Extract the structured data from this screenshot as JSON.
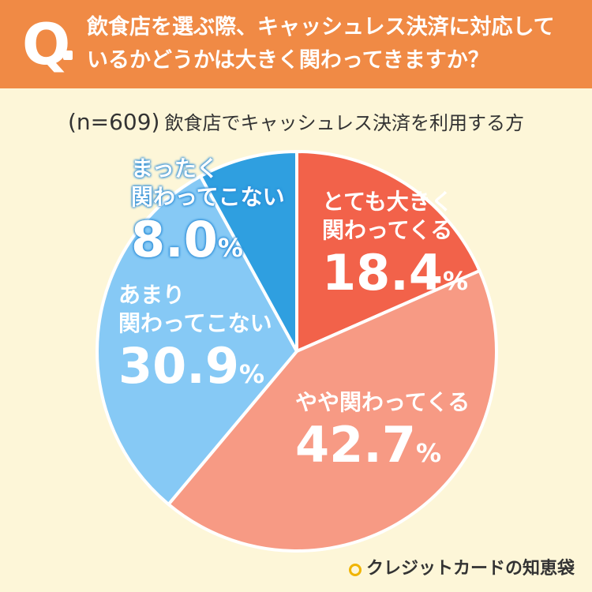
{
  "header": {
    "q_mark": "Q",
    "question_line1": "飲食店を選ぶ際、キャッシュレス決済に対応して",
    "question_line2": "いるかどうかは大きく関わってきますか？"
  },
  "subtitle": {
    "n": "(n=609)",
    "text": "飲食店でキャッシュレス決済を利用する方"
  },
  "chart_data": {
    "type": "pie",
    "title": "",
    "slices": [
      {
        "label_line1": "とても大きく",
        "label_line2": "関わってくる",
        "value": 18.4,
        "value_text": "18.4",
        "unit": "%",
        "color": "#f2624a"
      },
      {
        "label_line1": "やや関わってくる",
        "label_line2": "",
        "value": 42.7,
        "value_text": "42.7",
        "unit": "%",
        "color": "#f79a84"
      },
      {
        "label_line1": "あまり",
        "label_line2": "関わってこない",
        "value": 30.9,
        "value_text": "30.9",
        "unit": "%",
        "color": "#86c9f5"
      },
      {
        "label_line1": "まったく",
        "label_line2": "関わってこない",
        "value": 8.0,
        "value_text": "8.0",
        "unit": "%",
        "color": "#2f9fe0"
      }
    ],
    "start_angle": "12 o'clock",
    "direction": "clockwise"
  },
  "brand": {
    "name": "クレジットカードの知恵袋",
    "icon": "lightbulb-icon",
    "accent": "#f0b400"
  }
}
